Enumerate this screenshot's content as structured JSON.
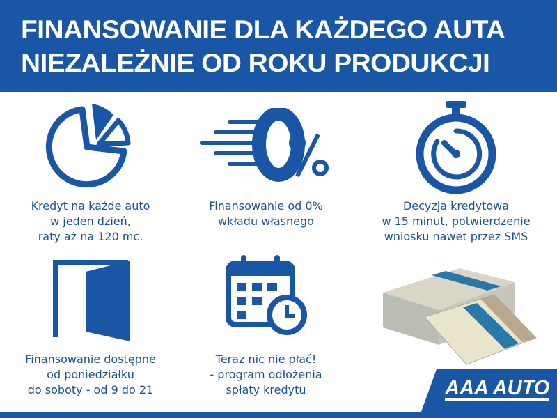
{
  "header": {
    "line1": "FINANSOWANIE DLA KAŻDEGO AUTA",
    "line2": "NIEZALEŻNIE OD ROKU PRODUKCJI"
  },
  "features": [
    {
      "icon": "pie-chart-icon",
      "text": "Kredyt na każde auto\nw jeden dzień,\nraty aż na 120 mc."
    },
    {
      "icon": "zero-percent-icon",
      "text": "Finansowanie od 0%\nwkładu własnego"
    },
    {
      "icon": "stopwatch-icon",
      "text": "Decyzja kredytowa\nw 15 minut, potwierdzenie\nwniosku nawet przez SMS"
    },
    {
      "icon": "open-door-icon",
      "text": "Finansowanie dostępne\nod poniedziałku\ndo soboty - od 9 do 21"
    },
    {
      "icon": "calendar-clock-icon",
      "text": "Teraz nic nie płać!\n- program odłożenia\nspłaty kredytu"
    }
  ],
  "logo": {
    "text": "AAA AUTO"
  },
  "colors": {
    "brand": "#1957a6"
  }
}
